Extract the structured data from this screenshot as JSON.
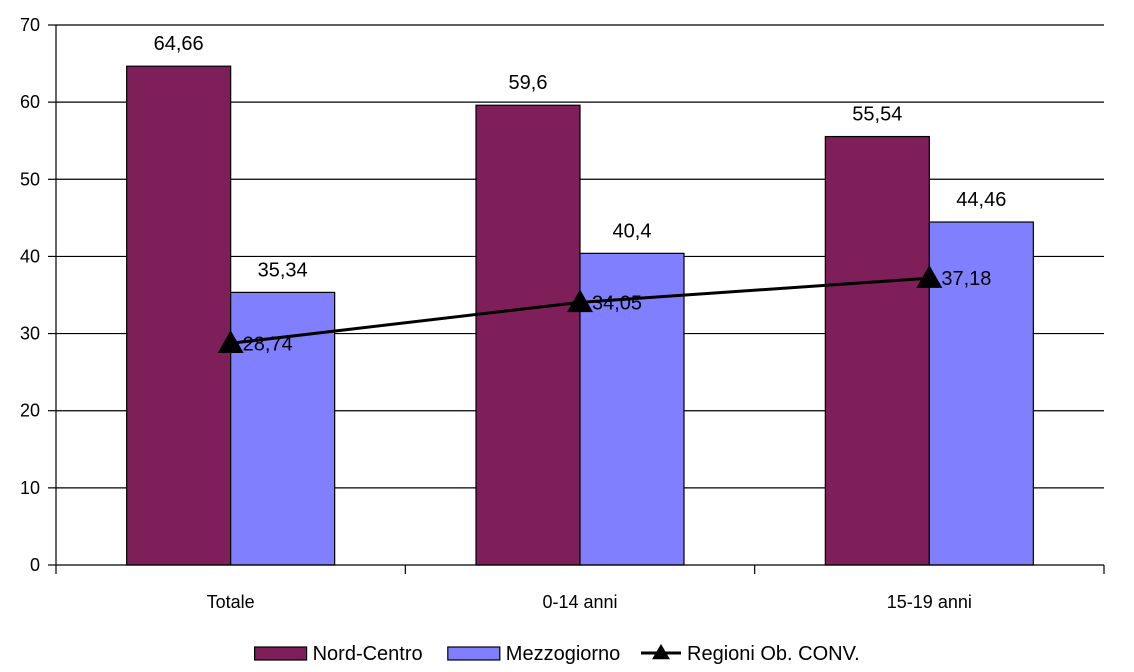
{
  "chart_data": {
    "type": "bar",
    "categories": [
      "Totale",
      "0-14 anni",
      "15-19 anni"
    ],
    "ylim": [
      0,
      70
    ],
    "yticks": [
      0,
      10,
      20,
      30,
      40,
      50,
      60,
      70
    ],
    "grid": true,
    "legend_placement": "bottom",
    "series": [
      {
        "name": "Nord-Centro",
        "type": "bar",
        "color": "#7f1f5a",
        "values": [
          64.66,
          59.6,
          55.54
        ],
        "labels": [
          "64,66",
          "59,6",
          "55,54"
        ]
      },
      {
        "name": "Mezzogiorno",
        "type": "bar",
        "color": "#8080ff",
        "values": [
          35.34,
          40.4,
          44.46
        ],
        "labels": [
          "35,34",
          "40,4",
          "44,46"
        ]
      },
      {
        "name": "Regioni Ob. CONV.",
        "type": "line",
        "color": "#000000",
        "marker": "triangle",
        "values": [
          28.74,
          34.05,
          37.18
        ],
        "labels": [
          "28,74",
          "34,05",
          "37,18"
        ]
      }
    ]
  }
}
